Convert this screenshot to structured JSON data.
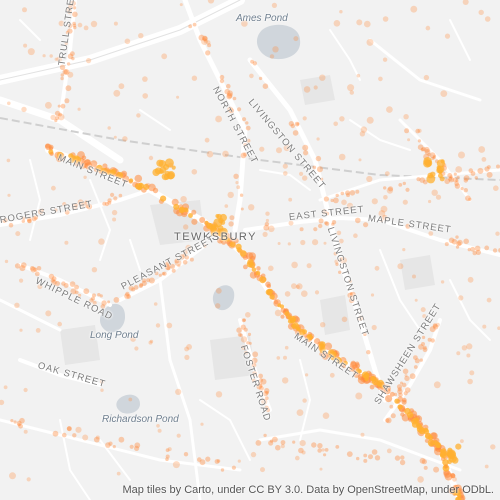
{
  "map": {
    "town": "TEWKSBURY",
    "water": {
      "ames": "Ames Pond",
      "long": "Long Pond",
      "richardson": "Richardson Pond"
    },
    "streets": {
      "trull": "TRULL STREET",
      "north": "NORTH STREET",
      "livingston_n": "LIVINGSTON STREET",
      "livingston_s": "LIVINGSTON STREET",
      "main_w": "MAIN STREET",
      "main_e": "MAIN STREET",
      "rogers": "ROGERS STREET",
      "east": "EAST STREET",
      "maple": "MAPLE STREET",
      "pleasant": "PLEASANT STREET",
      "whipple": "WHIPPLE ROAD",
      "oak": "OAK STREET",
      "foster": "FOSTER ROAD",
      "shawsheen": "SHAWSHEEN STREET"
    },
    "attribution": "Map tiles by Carto, under CC BY 3.0. Data by OpenStreetMap, under ODbL."
  },
  "colors": {
    "background": "#f2f2f2",
    "road": "#ffffff",
    "water": "#cfd5db",
    "park": "#e4e4e4",
    "heat_point": "#ff8a3d",
    "heat_core": "#ffb030"
  }
}
